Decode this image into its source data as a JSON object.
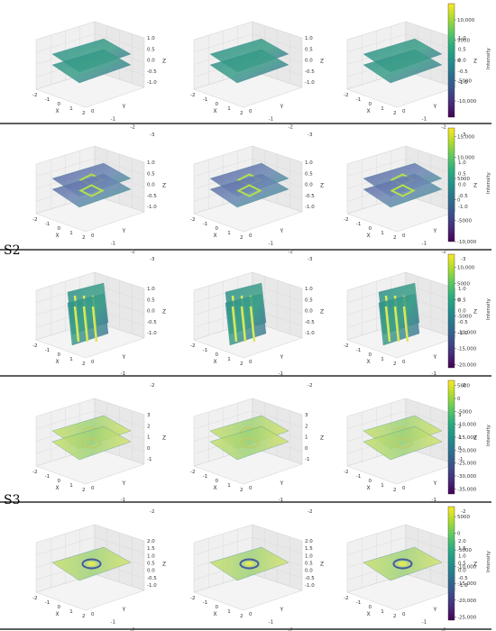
{
  "section_labels": [
    "S2",
    "S3"
  ],
  "colormap": [
    "#440154",
    "#472d7b",
    "#3b528b",
    "#2c728e",
    "#21918c",
    "#28ae80",
    "#5ec962",
    "#addc30",
    "#fde725"
  ],
  "chart_data": {
    "type": "3d-surface-grid",
    "rows": [
      {
        "group": "",
        "panels": 3,
        "xlabel": "X",
        "ylabel": "Y",
        "zlabel": "Z",
        "xticks": [
          "-2",
          "-1",
          "0",
          "1",
          "2"
        ],
        "yticks": [
          "0",
          "-1",
          "-2",
          "-3"
        ],
        "zticks": [
          "1.0",
          "0.5",
          "0.0",
          "-0.5",
          "-1.0"
        ],
        "colorbar": {
          "label": "Intensity",
          "ticks": [
            "10,000",
            "5000",
            "0",
            "-5000",
            "-10,000"
          ],
          "range": [
            -14000,
            14000
          ]
        },
        "planes": [
          2,
          2,
          2
        ],
        "pattern": "none"
      },
      {
        "group": "S2",
        "panels": 3,
        "xlabel": "X",
        "ylabel": "Y",
        "zlabel": "Z",
        "xticks": [
          "-2",
          "-1",
          "0",
          "1",
          "2"
        ],
        "yticks": [
          "0",
          "-1",
          "-2",
          "-3"
        ],
        "zticks": [
          "1.0",
          "0.5",
          "0.0",
          "-0.5",
          "-1.0"
        ],
        "colorbar": {
          "label": "Intensity",
          "ticks": [
            "15,000",
            "10,000",
            "5000",
            "0",
            "-5000",
            "-10,000"
          ],
          "range": [
            -10000,
            17000
          ]
        },
        "planes": [
          2,
          2,
          2
        ],
        "pattern": "ring"
      },
      {
        "group": "S2",
        "panels": 3,
        "xlabel": "X",
        "ylabel": "Y",
        "zlabel": "Z",
        "xticks": [
          "-2",
          "-1",
          "0",
          "1",
          "2"
        ],
        "yticks": [
          "0",
          "-1",
          "-2"
        ],
        "zticks": [
          "1.0",
          "0.5",
          "0.0",
          "-0.5",
          "-1.0"
        ],
        "colorbar": {
          "label": "Intensity",
          "ticks": [
            "10,000",
            "5000",
            "0",
            "-5000",
            "-10,000",
            "-15,000",
            "-20,000"
          ],
          "range": [
            -21000,
            14000
          ]
        },
        "planes": [
          2,
          2,
          2
        ],
        "pattern": "stripes"
      },
      {
        "group": "S3",
        "panels": 3,
        "xlabel": "X",
        "ylabel": "Y",
        "zlabel": "Z",
        "xticks": [
          "-2",
          "-1",
          "0",
          "1",
          "2"
        ],
        "yticks": [
          "0",
          "-1",
          "-2"
        ],
        "zticks": [
          "3",
          "2",
          "1",
          "0",
          "-1"
        ],
        "colorbar": {
          "label": "Intensity",
          "ticks": [
            "5000",
            "0",
            "-5000",
            "-10,000",
            "-15,000",
            "-20,000",
            "-25,000",
            "-30,000",
            "-35,000"
          ],
          "range": [
            -37000,
            7000
          ]
        },
        "planes": [
          2,
          2,
          2
        ],
        "pattern": "bright"
      },
      {
        "group": "S3",
        "panels": 3,
        "xlabel": "X",
        "ylabel": "Y",
        "zlabel": "Z",
        "xticks": [
          "-2",
          "-1",
          "0",
          "1",
          "2"
        ],
        "yticks": [
          "0",
          "-1",
          "-2",
          "-3"
        ],
        "zticks": [
          "2.0",
          "1.5",
          "1.0",
          "0.5",
          "0.0",
          "-0.5",
          "-1.0"
        ],
        "colorbar": {
          "label": "Intensity",
          "ticks": [
            "5000",
            "0",
            "-5000",
            "-10,000",
            "-15,000",
            "-20,000",
            "-25,000"
          ],
          "range": [
            -26000,
            8000
          ]
        },
        "planes": [
          1,
          1,
          1
        ],
        "pattern": "spot"
      }
    ]
  }
}
